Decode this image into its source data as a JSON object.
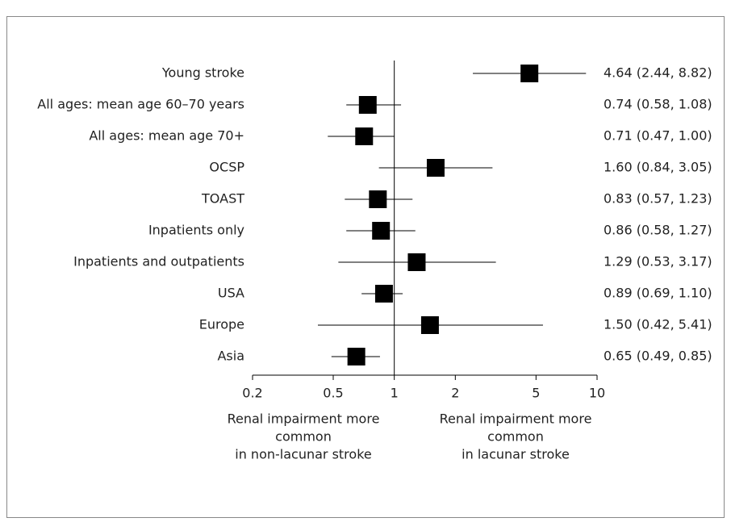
{
  "chart_data": {
    "type": "forest",
    "categories": [
      "Young stroke",
      "All ages: mean age 60–70 years",
      "All ages: mean age 70+",
      "OCSP",
      "TOAST",
      "Inpatients only",
      "Inpatients and outpatients",
      "USA",
      "Europe",
      "Asia"
    ],
    "values": [
      4.64,
      0.74,
      0.71,
      1.6,
      0.83,
      0.86,
      1.29,
      0.89,
      1.5,
      0.65
    ],
    "ci_lower": [
      2.44,
      0.58,
      0.47,
      0.84,
      0.57,
      0.58,
      0.53,
      0.69,
      0.42,
      0.49
    ],
    "ci_upper": [
      8.82,
      1.08,
      1.0,
      3.05,
      1.23,
      1.27,
      3.17,
      1.1,
      5.41,
      0.85
    ],
    "value_labels": [
      "4.64 (2.44, 8.82)",
      "0.74 (0.58, 1.08)",
      "0.71 (0.47, 1.00)",
      "1.60 (0.84, 3.05)",
      "0.83 (0.57, 1.23)",
      "0.86 (0.58, 1.27)",
      "1.29 (0.53, 3.17)",
      "0.89 (0.69, 1.10)",
      "1.50 (0.42, 5.41)",
      "0.65 (0.49, 0.85)"
    ],
    "color": "#000000",
    "xscale": "log",
    "reference_line": 1,
    "xlim": [
      0.2,
      10
    ],
    "xticks": [
      0.2,
      0.5,
      1,
      2,
      5,
      10
    ],
    "x_annotations": {
      "left": [
        "Renal impairment more",
        "common",
        "in non-lacunar stroke"
      ],
      "right": [
        "Renal impairment more",
        "common",
        "in lacunar stroke"
      ]
    }
  }
}
